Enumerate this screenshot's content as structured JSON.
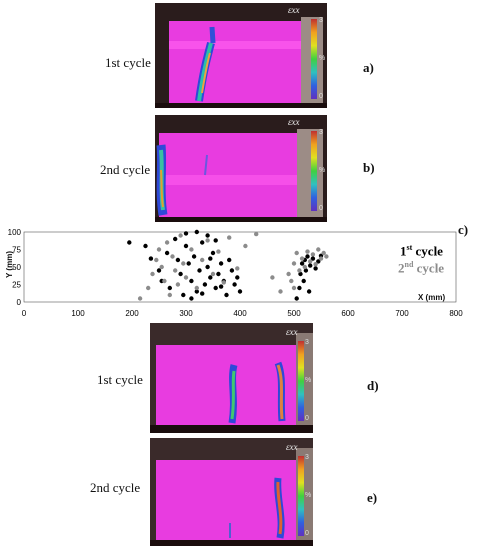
{
  "panels": [
    {
      "id": "a",
      "cycle": "1st cycle",
      "letter": "a)"
    },
    {
      "id": "b",
      "cycle": "2nd cycle",
      "letter": "b)"
    },
    {
      "id": "d",
      "cycle": "1st cycle",
      "letter": "d)"
    },
    {
      "id": "e",
      "cycle": "2nd cycle",
      "letter": "e)"
    }
  ],
  "colorbar": {
    "title": "εxx",
    "ticks": [
      "3",
      "%",
      "0"
    ]
  },
  "chart_data": {
    "type": "scatter",
    "letter": "c)",
    "xlabel": "X (mm)",
    "ylabel": "Y (mm)",
    "xlim": [
      0,
      800
    ],
    "ylim": [
      0,
      100
    ],
    "xticks": [
      0,
      100,
      200,
      300,
      400,
      500,
      600,
      700,
      800
    ],
    "yticks": [
      0,
      25,
      50,
      75,
      100
    ],
    "series": [
      {
        "name": "1st cycle",
        "color": "#000000",
        "points": [
          [
            195,
            85
          ],
          [
            225,
            80
          ],
          [
            235,
            62
          ],
          [
            250,
            45
          ],
          [
            255,
            30
          ],
          [
            265,
            70
          ],
          [
            270,
            20
          ],
          [
            280,
            90
          ],
          [
            285,
            60
          ],
          [
            290,
            40
          ],
          [
            295,
            10
          ],
          [
            300,
            80
          ],
          [
            305,
            55
          ],
          [
            310,
            30
          ],
          [
            315,
            65
          ],
          [
            320,
            15
          ],
          [
            325,
            45
          ],
          [
            330,
            85
          ],
          [
            335,
            25
          ],
          [
            340,
            50
          ],
          [
            345,
            35
          ],
          [
            350,
            70
          ],
          [
            355,
            20
          ],
          [
            360,
            40
          ],
          [
            365,
            55
          ],
          [
            370,
            30
          ],
          [
            375,
            10
          ],
          [
            380,
            60
          ],
          [
            385,
            45
          ],
          [
            390,
            25
          ],
          [
            395,
            35
          ],
          [
            400,
            15
          ],
          [
            340,
            95
          ],
          [
            320,
            100
          ],
          [
            300,
            98
          ],
          [
            355,
            88
          ],
          [
            310,
            5
          ],
          [
            330,
            12
          ],
          [
            365,
            22
          ],
          [
            345,
            62
          ],
          [
            505,
            5
          ],
          [
            510,
            20
          ],
          [
            512,
            40
          ],
          [
            515,
            55
          ],
          [
            518,
            30
          ],
          [
            520,
            60
          ],
          [
            522,
            45
          ],
          [
            525,
            65
          ],
          [
            528,
            15
          ],
          [
            530,
            52
          ],
          [
            535,
            62
          ],
          [
            540,
            48
          ],
          [
            545,
            58
          ],
          [
            550,
            66
          ]
        ]
      },
      {
        "name": "2nd cycle",
        "color": "#8c8c8c",
        "points": [
          [
            215,
            5
          ],
          [
            230,
            20
          ],
          [
            238,
            40
          ],
          [
            245,
            60
          ],
          [
            250,
            75
          ],
          [
            255,
            50
          ],
          [
            260,
            30
          ],
          [
            265,
            85
          ],
          [
            270,
            10
          ],
          [
            275,
            65
          ],
          [
            280,
            45
          ],
          [
            285,
            25
          ],
          [
            290,
            95
          ],
          [
            295,
            55
          ],
          [
            300,
            35
          ],
          [
            310,
            75
          ],
          [
            320,
            20
          ],
          [
            330,
            60
          ],
          [
            340,
            88
          ],
          [
            350,
            40
          ],
          [
            360,
            72
          ],
          [
            370,
            28
          ],
          [
            380,
            92
          ],
          [
            395,
            48
          ],
          [
            410,
            80
          ],
          [
            430,
            97
          ],
          [
            460,
            35
          ],
          [
            475,
            15
          ],
          [
            495,
            30
          ],
          [
            500,
            55
          ],
          [
            505,
            70
          ],
          [
            510,
            45
          ],
          [
            515,
            62
          ],
          [
            520,
            50
          ],
          [
            525,
            72
          ],
          [
            530,
            58
          ],
          [
            535,
            68
          ],
          [
            540,
            54
          ],
          [
            545,
            75
          ],
          [
            550,
            62
          ],
          [
            555,
            70
          ],
          [
            560,
            65
          ],
          [
            500,
            20
          ],
          [
            490,
            40
          ]
        ]
      }
    ]
  }
}
